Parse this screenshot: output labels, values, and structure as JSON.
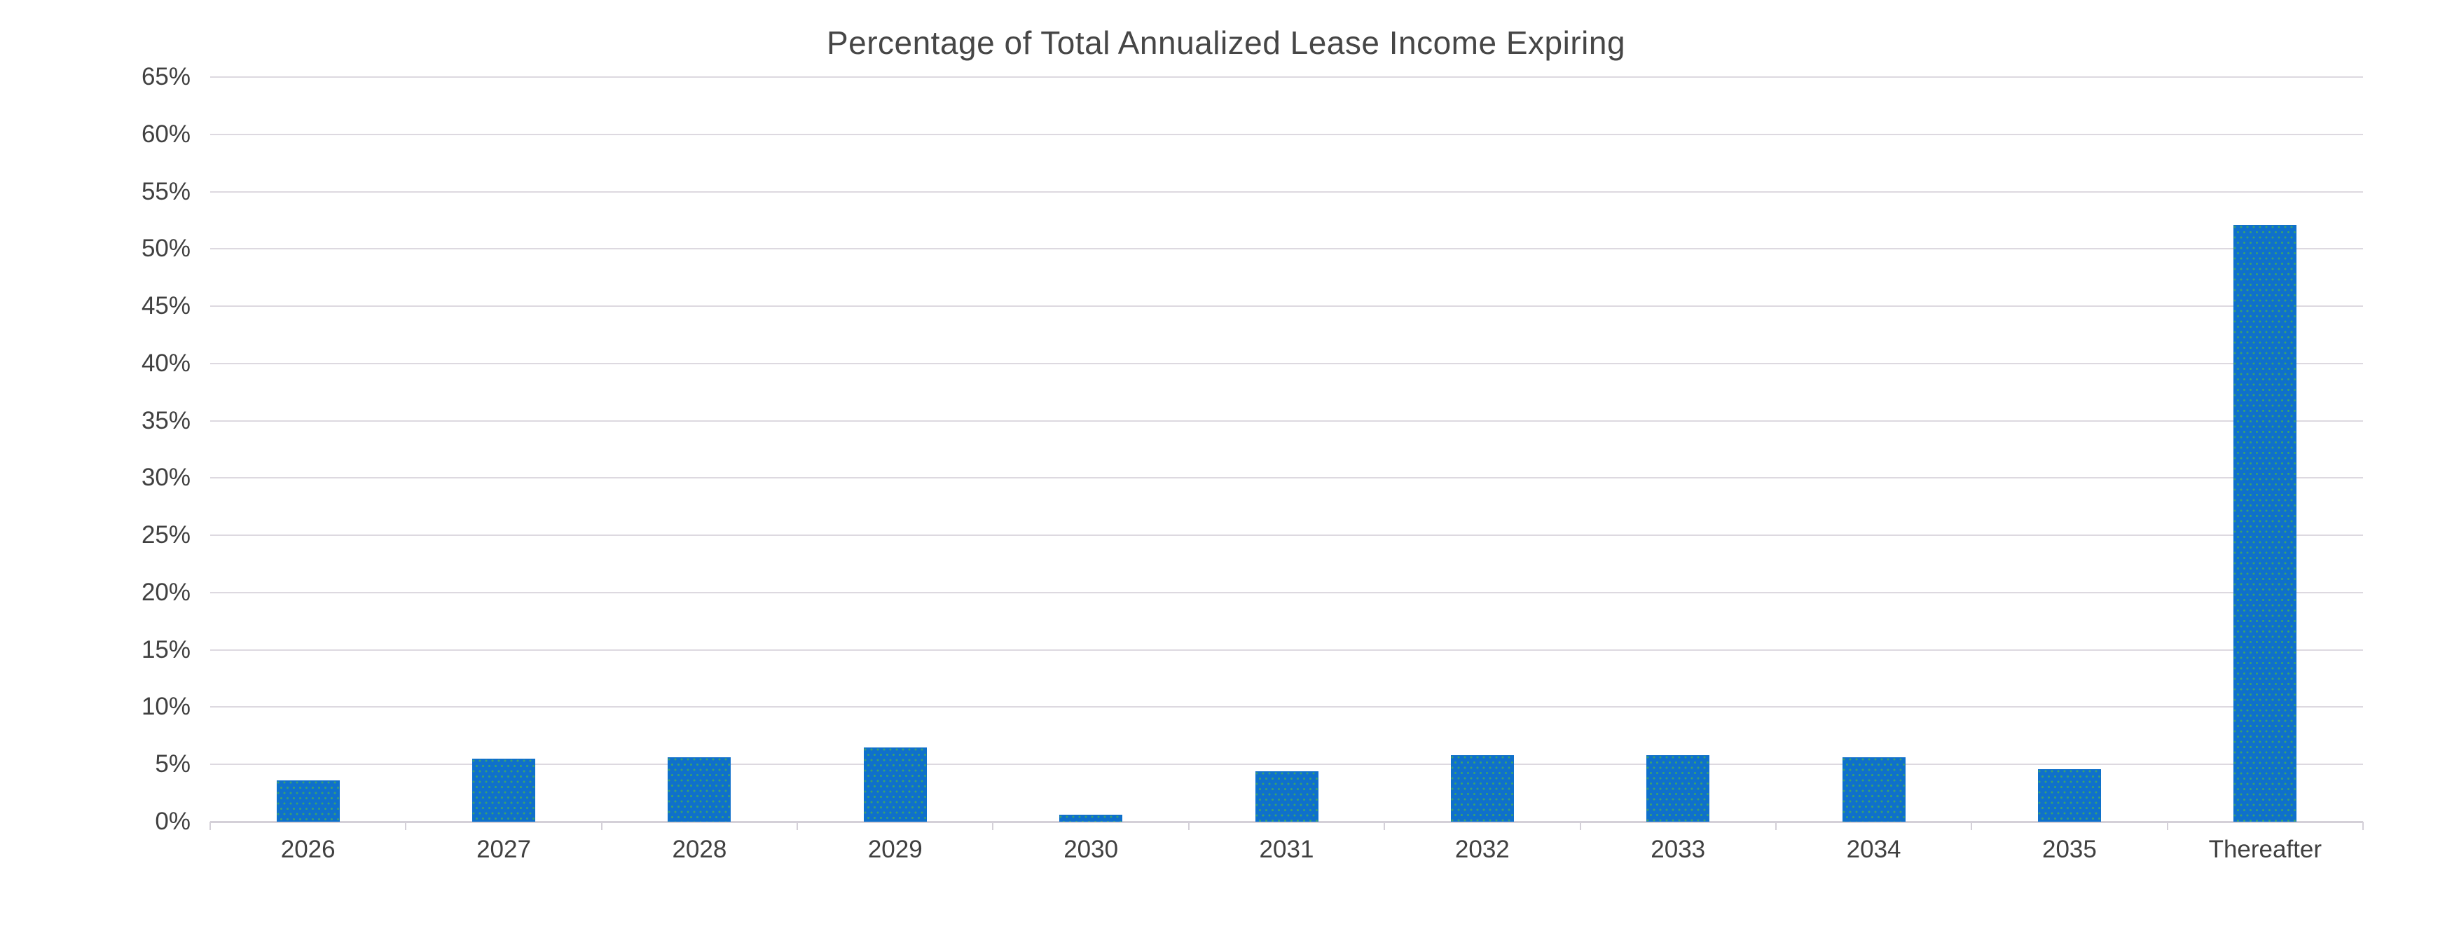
{
  "chart_data": {
    "type": "bar",
    "title": "Percentage of Total Annualized Lease Income Expiring",
    "categories": [
      "2026",
      "2027",
      "2028",
      "2029",
      "2030",
      "2031",
      "2032",
      "2033",
      "2034",
      "2035",
      "Thereafter"
    ],
    "values": [
      3.6,
      5.5,
      5.6,
      6.5,
      0.6,
      4.4,
      5.8,
      5.8,
      5.6,
      4.6,
      52.1
    ],
    "value_format": "percent",
    "ylim": [
      0,
      65
    ],
    "ytick_step": 5,
    "ytick_labels": [
      "0%",
      "5%",
      "10%",
      "15%",
      "20%",
      "25%",
      "30%",
      "35%",
      "40%",
      "45%",
      "50%",
      "55%",
      "60%",
      "65%"
    ],
    "grid": true,
    "legend": false,
    "colors": {
      "bar_fill": "#0F70CB",
      "bar_dot_pattern": "rgba(62,168,98,0.85)",
      "gridline": "#DDD9E0",
      "axis_line": "#D4D0D8",
      "tick_mark": "#D4D0D8",
      "label_text": "#404040",
      "title_text": "#464646",
      "background": "#FFFFFF"
    }
  }
}
